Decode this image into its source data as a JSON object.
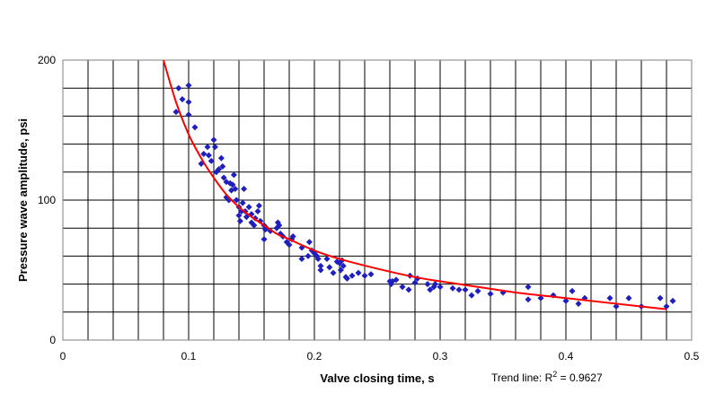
{
  "chart_data": {
    "type": "scatter",
    "xlabel": "Valve closing time, s",
    "ylabel": "Pressure wave amplitude, psi",
    "xlim": [
      0,
      0.5
    ],
    "ylim": [
      0,
      200
    ],
    "x_ticks": [
      "0",
      "0.1",
      "0.2",
      "0.3",
      "0.4",
      "0.5"
    ],
    "y_ticks": [
      "0",
      "100",
      "200"
    ],
    "grid": true,
    "colors": {
      "points": "#1f1fbf",
      "trend": "#ff0000",
      "grid": "#000000"
    },
    "annotation": {
      "prefix": "Trend line: R",
      "sup": "2",
      "suffix": " = 0.9627"
    },
    "trendline": {
      "x": [
        0.08,
        0.09,
        0.1,
        0.11,
        0.12,
        0.13,
        0.14,
        0.15,
        0.16,
        0.17,
        0.18,
        0.2,
        0.22,
        0.25,
        0.28,
        0.3,
        0.33,
        0.36,
        0.4,
        0.44,
        0.48
      ],
      "y": [
        200,
        170,
        147,
        130,
        116,
        104,
        95,
        88,
        82,
        76,
        72,
        64,
        58,
        51,
        45,
        42,
        38,
        34,
        30,
        26,
        22
      ]
    },
    "points": [
      [
        0.09,
        163
      ],
      [
        0.092,
        180
      ],
      [
        0.095,
        172
      ],
      [
        0.1,
        182
      ],
      [
        0.1,
        170
      ],
      [
        0.1,
        161
      ],
      [
        0.105,
        152
      ],
      [
        0.11,
        126
      ],
      [
        0.112,
        133
      ],
      [
        0.115,
        138
      ],
      [
        0.116,
        132
      ],
      [
        0.118,
        128
      ],
      [
        0.12,
        143
      ],
      [
        0.121,
        138
      ],
      [
        0.122,
        120
      ],
      [
        0.124,
        122
      ],
      [
        0.126,
        130
      ],
      [
        0.127,
        124
      ],
      [
        0.128,
        116
      ],
      [
        0.13,
        113
      ],
      [
        0.13,
        102
      ],
      [
        0.132,
        100
      ],
      [
        0.133,
        112
      ],
      [
        0.134,
        107
      ],
      [
        0.135,
        111
      ],
      [
        0.136,
        118
      ],
      [
        0.137,
        108
      ],
      [
        0.138,
        100
      ],
      [
        0.14,
        95
      ],
      [
        0.14,
        89
      ],
      [
        0.141,
        85
      ],
      [
        0.142,
        92
      ],
      [
        0.143,
        98
      ],
      [
        0.144,
        108
      ],
      [
        0.145,
        92
      ],
      [
        0.146,
        88
      ],
      [
        0.148,
        95
      ],
      [
        0.15,
        90
      ],
      [
        0.15,
        84
      ],
      [
        0.152,
        82
      ],
      [
        0.153,
        87
      ],
      [
        0.155,
        92
      ],
      [
        0.156,
        96
      ],
      [
        0.157,
        85
      ],
      [
        0.16,
        82
      ],
      [
        0.16,
        72
      ],
      [
        0.161,
        79
      ],
      [
        0.162,
        80
      ],
      [
        0.165,
        78
      ],
      [
        0.17,
        80
      ],
      [
        0.171,
        84
      ],
      [
        0.172,
        82
      ],
      [
        0.173,
        76
      ],
      [
        0.175,
        74
      ],
      [
        0.178,
        70
      ],
      [
        0.18,
        68
      ],
      [
        0.182,
        72
      ],
      [
        0.183,
        74
      ],
      [
        0.19,
        66
      ],
      [
        0.19,
        58
      ],
      [
        0.195,
        60
      ],
      [
        0.196,
        70
      ],
      [
        0.198,
        64
      ],
      [
        0.2,
        62
      ],
      [
        0.202,
        60
      ],
      [
        0.203,
        58
      ],
      [
        0.205,
        53
      ],
      [
        0.205,
        50
      ],
      [
        0.21,
        58
      ],
      [
        0.212,
        52
      ],
      [
        0.215,
        48
      ],
      [
        0.218,
        56
      ],
      [
        0.22,
        55
      ],
      [
        0.221,
        50
      ],
      [
        0.222,
        57
      ],
      [
        0.223,
        53
      ],
      [
        0.225,
        45
      ],
      [
        0.226,
        44
      ],
      [
        0.23,
        46
      ],
      [
        0.235,
        48
      ],
      [
        0.24,
        46
      ],
      [
        0.245,
        47
      ],
      [
        0.26,
        42
      ],
      [
        0.261,
        40
      ],
      [
        0.262,
        42
      ],
      [
        0.265,
        43
      ],
      [
        0.27,
        38
      ],
      [
        0.275,
        36
      ],
      [
        0.276,
        46
      ],
      [
        0.28,
        41
      ],
      [
        0.282,
        44
      ],
      [
        0.29,
        40
      ],
      [
        0.292,
        36
      ],
      [
        0.295,
        38
      ],
      [
        0.296,
        40
      ],
      [
        0.3,
        38
      ],
      [
        0.31,
        37
      ],
      [
        0.315,
        36
      ],
      [
        0.32,
        36
      ],
      [
        0.325,
        32
      ],
      [
        0.33,
        35
      ],
      [
        0.34,
        33
      ],
      [
        0.35,
        34
      ],
      [
        0.37,
        38
      ],
      [
        0.37,
        29
      ],
      [
        0.38,
        30
      ],
      [
        0.39,
        32
      ],
      [
        0.4,
        28
      ],
      [
        0.405,
        35
      ],
      [
        0.41,
        26
      ],
      [
        0.415,
        30
      ],
      [
        0.435,
        30
      ],
      [
        0.44,
        24
      ],
      [
        0.45,
        30
      ],
      [
        0.46,
        24
      ],
      [
        0.475,
        30
      ],
      [
        0.48,
        24
      ],
      [
        0.485,
        28
      ]
    ]
  }
}
